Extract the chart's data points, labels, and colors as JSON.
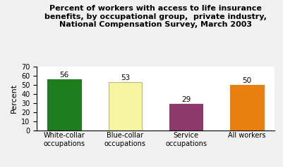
{
  "title": "Percent of workers with access to life insurance\nbenefits, by occupational group,  private industry,\nNational Compensation Survey, March 2003",
  "categories": [
    "White-collar\noccupations",
    "Blue-collar\noccupations",
    "Service\noccupations",
    "All workers"
  ],
  "values": [
    56,
    53,
    29,
    50
  ],
  "bar_colors": [
    "#1e7d1e",
    "#f5f5a0",
    "#8b3a6b",
    "#e88010"
  ],
  "bar_edge_colors": [
    "#1e7d1e",
    "#bbbb80",
    "#8b3a6b",
    "#e88010"
  ],
  "ylabel": "Percent",
  "ylim": [
    0,
    70
  ],
  "yticks": [
    0,
    10,
    20,
    30,
    40,
    50,
    60,
    70
  ],
  "label_fontsize": 7.5,
  "title_fontsize": 8,
  "ylabel_fontsize": 8,
  "tick_fontsize": 7,
  "background_color": "#f0f0f0"
}
